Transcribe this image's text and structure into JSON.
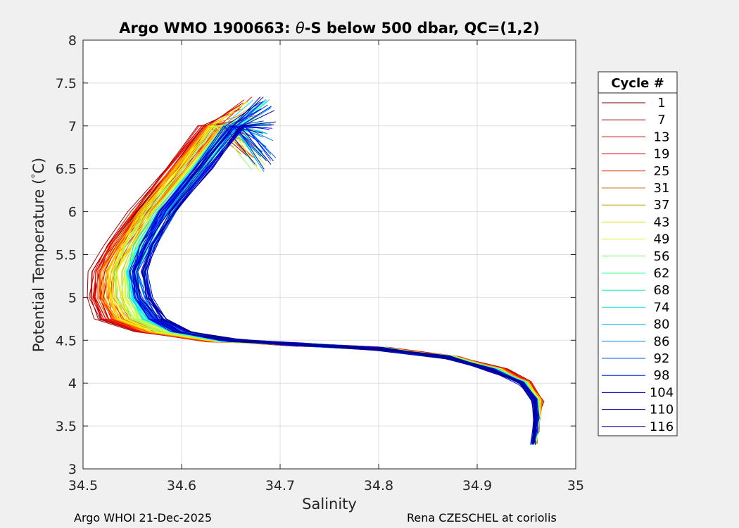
{
  "chart_data": {
    "type": "line",
    "title_parts": [
      "Argo WMO 1900663: ",
      "θ",
      "-S below 500 dbar,  QC=(1,2)"
    ],
    "xlabel": "Salinity",
    "ylabel_parts": [
      "Potential Temperature (",
      "°",
      "C)"
    ],
    "xlim": [
      34.5,
      35
    ],
    "ylim": [
      3,
      8
    ],
    "xticks": [
      34.5,
      34.6,
      34.7,
      34.8,
      34.9,
      35
    ],
    "xtick_labels": [
      "34.5",
      "34.6",
      "34.7",
      "34.8",
      "34.9",
      "35"
    ],
    "yticks": [
      3,
      3.5,
      4,
      4.5,
      5,
      5.5,
      6,
      6.5,
      7,
      7.5,
      8
    ],
    "ytick_labels": [
      "3",
      "3.5",
      "4",
      "4.5",
      "5",
      "5.5",
      "6",
      "6.5",
      "7",
      "7.5",
      "8"
    ],
    "grid": true,
    "legend": {
      "title": "Cycle #",
      "placement": "outside-right",
      "entries": [
        {
          "label": "1",
          "color": "#7f0000"
        },
        {
          "label": "7",
          "color": "#a60000"
        },
        {
          "label": "13",
          "color": "#cc0000"
        },
        {
          "label": "19",
          "color": "#e31010"
        },
        {
          "label": "25",
          "color": "#e33d10"
        },
        {
          "label": "31",
          "color": "#c07a10"
        },
        {
          "label": "37",
          "color": "#c0a000"
        },
        {
          "label": "43",
          "color": "#e0e000"
        },
        {
          "label": "49",
          "color": "#c8ff30"
        },
        {
          "label": "56",
          "color": "#7cff6a"
        },
        {
          "label": "62",
          "color": "#40ff90"
        },
        {
          "label": "68",
          "color": "#10f0b0"
        },
        {
          "label": "74",
          "color": "#00e0e0"
        },
        {
          "label": "80",
          "color": "#00b0ff"
        },
        {
          "label": "86",
          "color": "#0080ff"
        },
        {
          "label": "92",
          "color": "#0050ff"
        },
        {
          "label": "98",
          "color": "#0020e0"
        },
        {
          "label": "104",
          "color": "#0000b0"
        },
        {
          "label": "110",
          "color": "#000090"
        },
        {
          "label": "116",
          "color": "#00008f"
        }
      ]
    },
    "profile_anchors": {
      "theta": [
        7.35,
        7.0,
        6.5,
        6.0,
        5.6,
        5.3,
        5.0,
        4.75,
        4.6,
        4.5,
        4.45,
        4.4,
        4.3,
        4.15,
        4.0,
        3.8,
        3.6,
        3.45,
        3.3
      ],
      "early_cycles_salinity": [
        34.66,
        34.625,
        34.59,
        34.555,
        34.53,
        34.515,
        34.51,
        34.52,
        34.56,
        34.63,
        34.72,
        34.81,
        34.88,
        34.93,
        34.955,
        34.965,
        34.962,
        34.96,
        34.958
      ],
      "late_cycles_salinity": [
        34.685,
        34.655,
        34.62,
        34.585,
        34.565,
        34.555,
        34.56,
        34.575,
        34.6,
        34.65,
        34.72,
        34.8,
        34.87,
        34.915,
        34.945,
        34.958,
        34.96,
        34.959,
        34.957
      ]
    },
    "profiles": {
      "count": 120
    }
  },
  "footer": {
    "left": "Argo WHOI 21-Dec-2025",
    "right": "Rena CZESCHEL at coriolis"
  }
}
